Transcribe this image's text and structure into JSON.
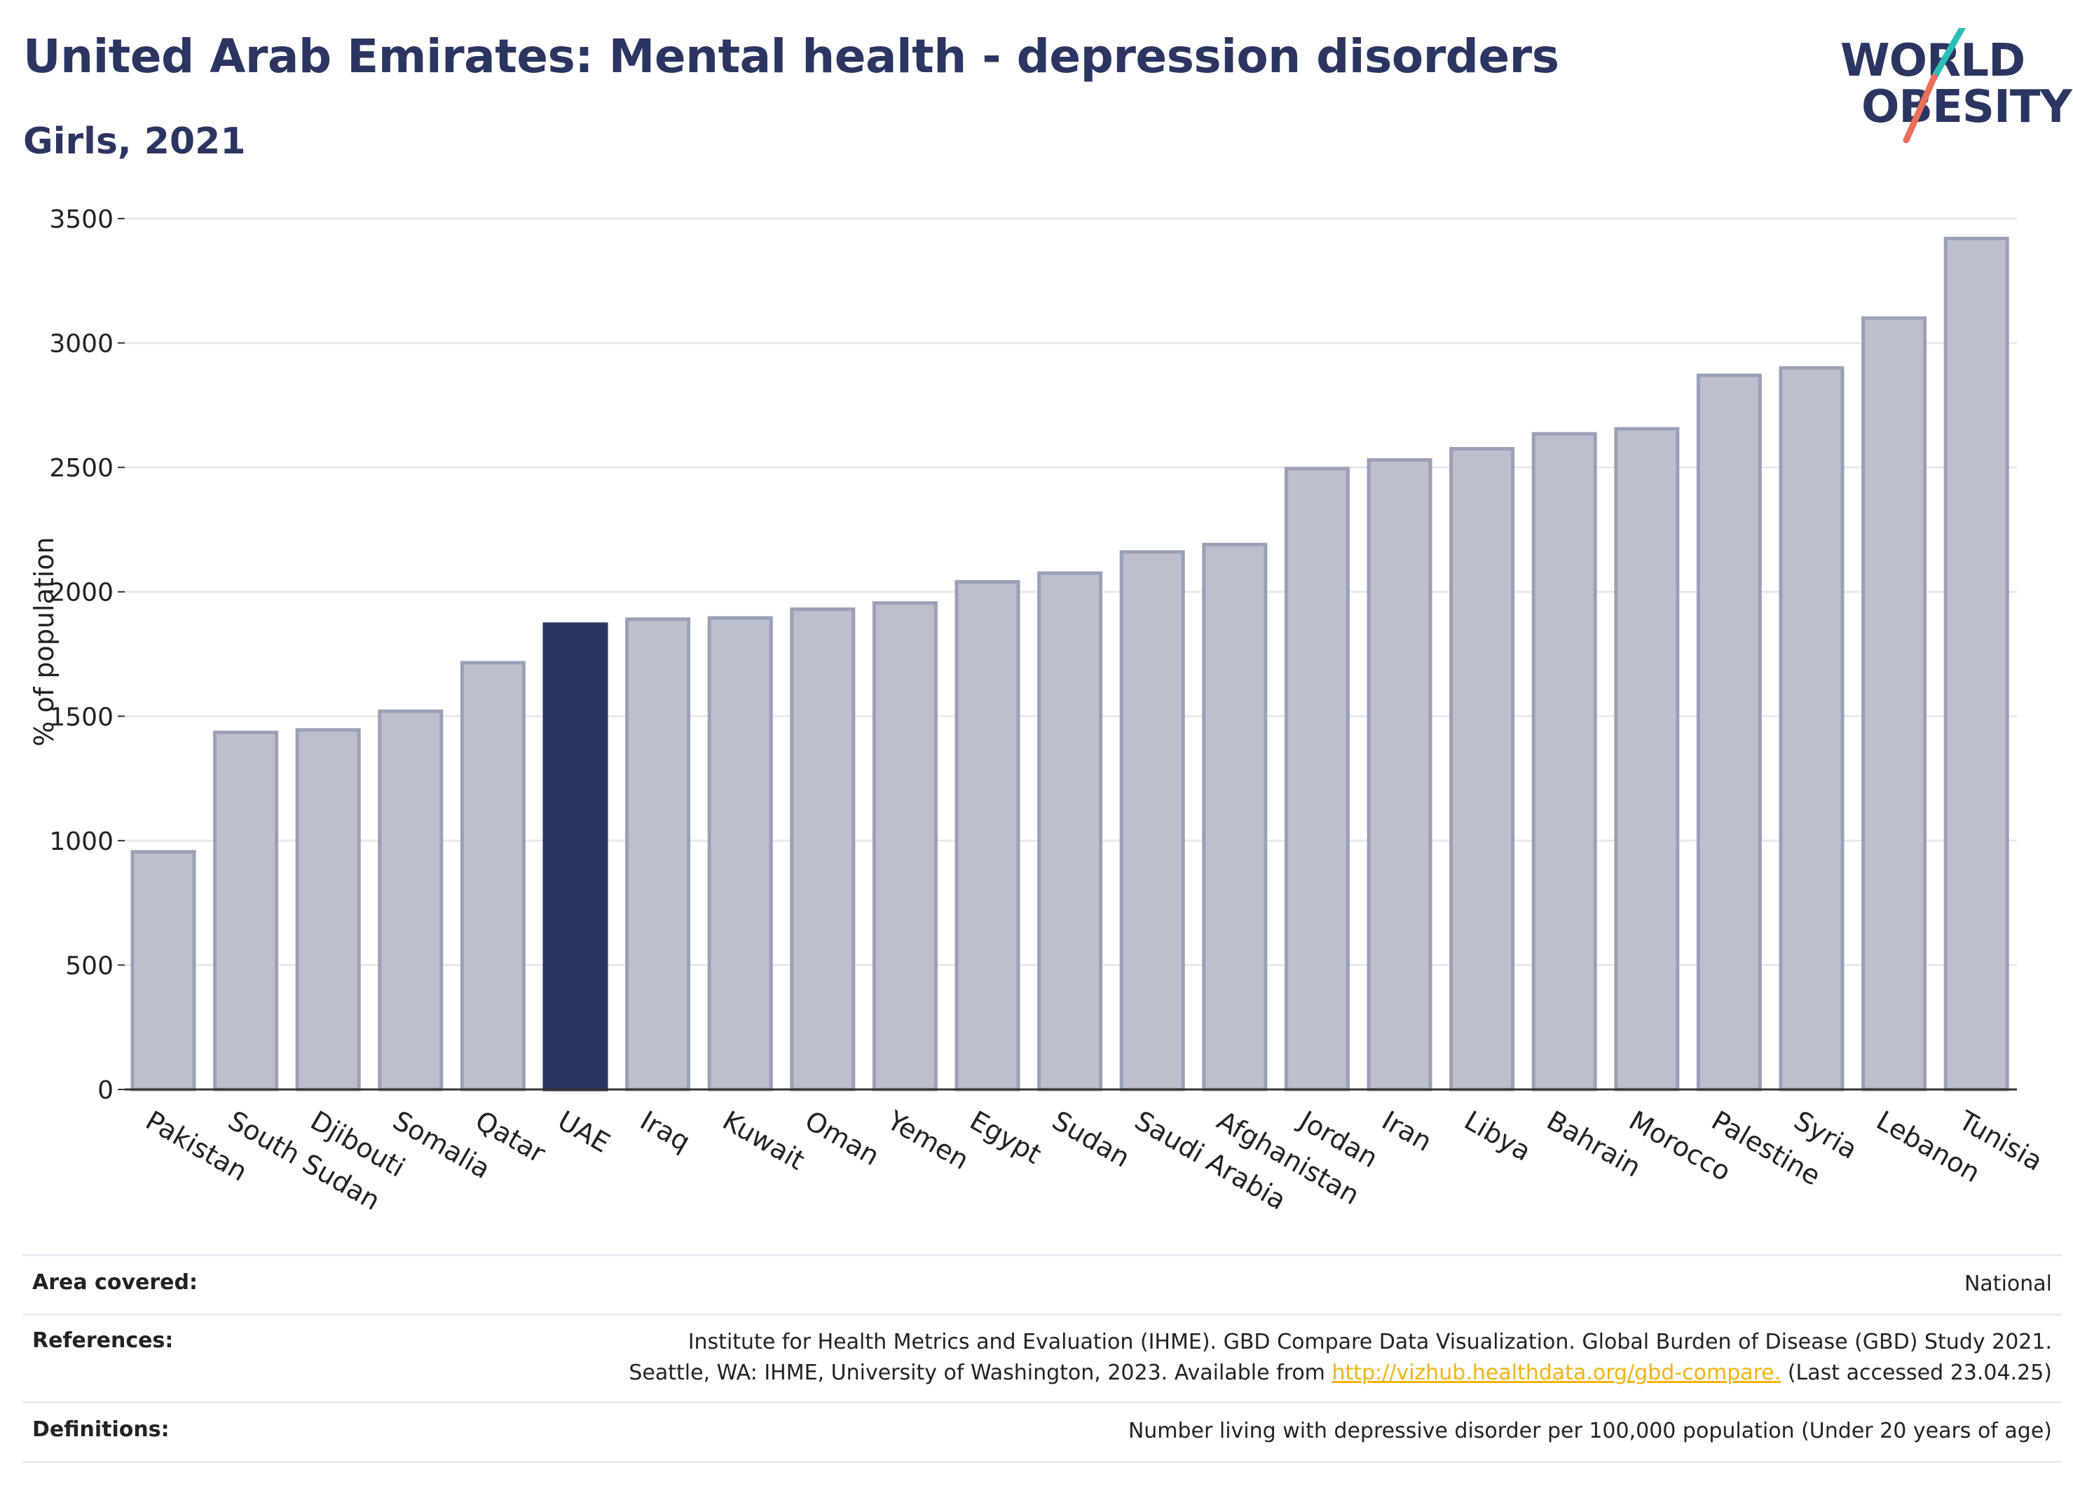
{
  "header": {
    "title": "United Arab Emirates: Mental health - depression disorders",
    "subtitle": "Girls, 2021"
  },
  "logo": {
    "line1": "WORLD",
    "line2": "OBESITY",
    "colors": {
      "teal": "#2bbfb3",
      "coral": "#e8705a"
    }
  },
  "chart_data": {
    "type": "bar",
    "ylabel": "% of population",
    "ylim": [
      0,
      3500
    ],
    "yticks": [
      0,
      500,
      1000,
      1500,
      2000,
      2500,
      3000,
      3500
    ],
    "grid": true,
    "categories": [
      "Pakistan",
      "South Sudan",
      "Djibouti",
      "Somalia",
      "Qatar",
      "UAE",
      "Iraq",
      "Kuwait",
      "Oman",
      "Yemen",
      "Egypt",
      "Sudan",
      "Saudi Arabia",
      "Afghanistan",
      "Jordan",
      "Iran",
      "Libya",
      "Bahrain",
      "Morocco",
      "Palestine",
      "Syria",
      "Lebanon",
      "Tunisia"
    ],
    "values": [
      955,
      1435,
      1445,
      1520,
      1715,
      1870,
      1890,
      1895,
      1930,
      1955,
      2040,
      2075,
      2160,
      2190,
      2495,
      2530,
      2575,
      2635,
      2655,
      2870,
      2900,
      3100,
      3420
    ],
    "highlight": "UAE",
    "colors": {
      "highlight": "#2b3561",
      "bar_fill": "#bcc0cd",
      "bar_edge": "#9aa0b6",
      "grid": "#e6e8ee"
    }
  },
  "footer": {
    "area_label": "Area covered:",
    "area_value": "National",
    "references_label": "References:",
    "references_line1": "Institute for Health Metrics and Evaluation (IHME). GBD Compare Data Visualization. Global Burden of Disease (GBD) Study 2021.",
    "references_line2_pre": "Seattle, WA: IHME, University of Washington, 2023. Available from ",
    "references_link": "http://vizhub.healthdata.org/gbd-compare.",
    "references_line2_post": " (Last accessed 23.04.25)",
    "definitions_label": "Definitions:",
    "definitions_value": "Number living with depressive disorder per 100,000 population (Under 20 years of age)"
  }
}
